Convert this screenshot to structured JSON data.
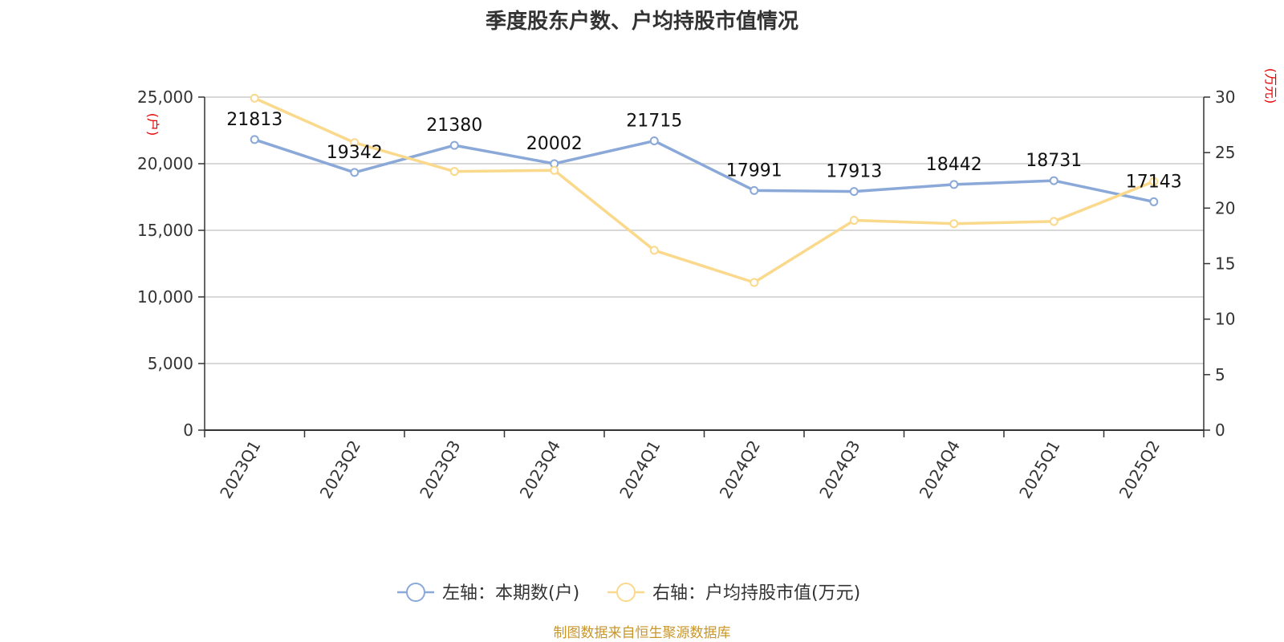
{
  "title": "季度股东户数、户均持股市值情况",
  "source": "制图数据来自恒生聚源数据库",
  "chart_data": {
    "type": "line",
    "categories": [
      "2023Q1",
      "2023Q2",
      "2023Q3",
      "2023Q4",
      "2024Q1",
      "2024Q2",
      "2024Q3",
      "2024Q4",
      "2025Q1",
      "2025Q2"
    ],
    "left_axis": {
      "unit_label": "(户)",
      "ylim": [
        0,
        25000
      ],
      "ticks": [
        0,
        5000,
        10000,
        15000,
        20000,
        25000
      ],
      "tick_labels": [
        "0",
        "5,000",
        "10,000",
        "15,000",
        "20,000",
        "25,000"
      ]
    },
    "right_axis": {
      "unit_label": "(万元)",
      "ylim": [
        0,
        30
      ],
      "ticks": [
        0,
        5,
        10,
        15,
        20,
        25,
        30
      ],
      "tick_labels": [
        "0",
        "5",
        "10",
        "15",
        "20",
        "25",
        "30"
      ]
    },
    "series": [
      {
        "name": "左轴：本期数(户)",
        "axis": "left",
        "color": "#8aa8d8",
        "values": [
          21813,
          19342,
          21380,
          20002,
          21715,
          17991,
          17913,
          18442,
          18731,
          17143
        ],
        "labels": [
          "21813",
          "19342",
          "21380",
          "20002",
          "21715",
          "17991",
          "17913",
          "18442",
          "18731",
          "17143"
        ]
      },
      {
        "name": "右轴：户均持股市值(万元)",
        "axis": "right",
        "color": "#fad98c",
        "values": [
          29.9,
          25.9,
          23.3,
          23.4,
          16.2,
          13.3,
          18.9,
          18.6,
          18.8,
          22.4
        ]
      }
    ],
    "grid": true,
    "legend_position": "bottom"
  }
}
